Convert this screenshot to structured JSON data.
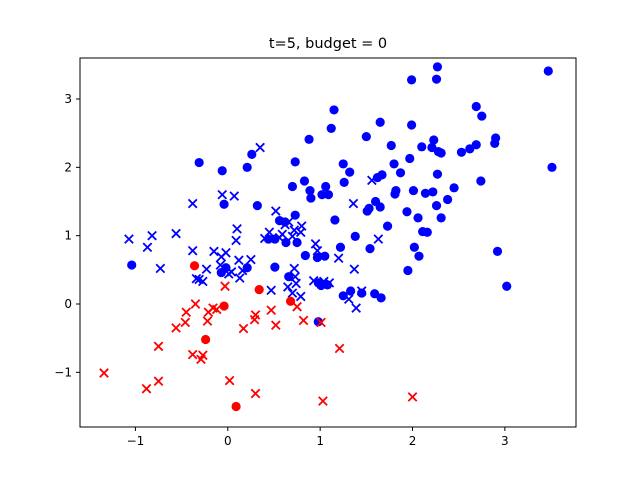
{
  "chart_data": {
    "type": "scatter",
    "title": "t=5, budget = 0",
    "xlabel": "",
    "ylabel": "",
    "xlim": [
      -1.6,
      3.77
    ],
    "ylim": [
      -1.8,
      3.6
    ],
    "xticks": [
      -1,
      0,
      1,
      2,
      3
    ],
    "yticks": [
      -1,
      0,
      1,
      2,
      3
    ],
    "xtick_labels": [
      "−1",
      "0",
      "1",
      "2",
      "3"
    ],
    "ytick_labels": [
      "−1",
      "0",
      "1",
      "2",
      "3"
    ],
    "grid": false,
    "legend": "none",
    "series": [
      {
        "color": "#0000ff",
        "marker": "circle",
        "points": [
          [
            3.47,
            3.41
          ],
          [
            2.27,
            3.47
          ],
          [
            1.99,
            3.28
          ],
          [
            2.26,
            3.29
          ],
          [
            1.15,
            2.84
          ],
          [
            2.69,
            2.89
          ],
          [
            2.75,
            2.75
          ],
          [
            1.12,
            2.57
          ],
          [
            1.65,
            2.66
          ],
          [
            1.99,
            2.62
          ],
          [
            0.88,
            2.41
          ],
          [
            1.5,
            2.45
          ],
          [
            2.23,
            2.4
          ],
          [
            2.9,
            2.43
          ],
          [
            2.89,
            2.35
          ],
          [
            2.69,
            2.33
          ],
          [
            2.62,
            2.27
          ],
          [
            2.1,
            2.3
          ],
          [
            2.21,
            2.29
          ],
          [
            2.53,
            2.22
          ],
          [
            2.28,
            2.23
          ],
          [
            2.31,
            2.21
          ],
          [
            1.77,
            2.32
          ],
          [
            0.26,
            2.19
          ],
          [
            -0.31,
            2.07
          ],
          [
            0.73,
            2.08
          ],
          [
            1.25,
            2.05
          ],
          [
            0.21,
            2.0
          ],
          [
            3.51,
            2.0
          ],
          [
            1.32,
            1.93
          ],
          [
            1.8,
            2.05
          ],
          [
            -0.06,
            1.95
          ],
          [
            1.97,
            2.13
          ],
          [
            1.87,
            1.92
          ],
          [
            2.27,
            1.9
          ],
          [
            1.67,
            1.89
          ],
          [
            1.62,
            1.85
          ],
          [
            0.83,
            1.8
          ],
          [
            2.74,
            1.8
          ],
          [
            1.06,
            1.72
          ],
          [
            0.7,
            1.72
          ],
          [
            1.26,
            1.78
          ],
          [
            2.45,
            1.7
          ],
          [
            0.89,
            1.66
          ],
          [
            2.01,
            1.66
          ],
          [
            1.82,
            1.66
          ],
          [
            2.22,
            1.64
          ],
          [
            2.14,
            1.62
          ],
          [
            1.81,
            1.61
          ],
          [
            2.38,
            1.53
          ],
          [
            1.02,
            1.6
          ],
          [
            1.09,
            1.6
          ],
          [
            0.9,
            1.55
          ],
          [
            -0.04,
            1.46
          ],
          [
            0.32,
            1.44
          ],
          [
            1.6,
            1.5
          ],
          [
            1.65,
            1.42
          ],
          [
            2.26,
            1.44
          ],
          [
            1.94,
            1.35
          ],
          [
            1.53,
            1.4
          ],
          [
            1.51,
            1.36
          ],
          [
            2.06,
            1.26
          ],
          [
            2.31,
            1.26
          ],
          [
            0.56,
            1.22
          ],
          [
            0.73,
            1.3
          ],
          [
            1.16,
            1.23
          ],
          [
            0.62,
            1.2
          ],
          [
            1.73,
            1.14
          ],
          [
            2.11,
            1.06
          ],
          [
            2.16,
            1.05
          ],
          [
            0.75,
            0.9
          ],
          [
            1.38,
            0.99
          ],
          [
            0.44,
            0.95
          ],
          [
            0.51,
            0.95
          ],
          [
            0.63,
            0.9
          ],
          [
            2.02,
            0.83
          ],
          [
            1.22,
            0.83
          ],
          [
            2.92,
            0.77
          ],
          [
            0.84,
            0.71
          ],
          [
            -1.04,
            0.57
          ],
          [
            1.54,
            0.81
          ],
          [
            2.07,
            0.7
          ],
          [
            0.97,
            0.68
          ],
          [
            1.05,
            0.7
          ],
          [
            0.51,
            0.54
          ],
          [
            0.21,
            0.53
          ],
          [
            -0.02,
            0.53
          ],
          [
            1.95,
            0.49
          ],
          [
            -0.07,
            0.46
          ],
          [
            0.66,
            0.4
          ],
          [
            3.02,
            0.26
          ],
          [
            1.33,
            0.19
          ],
          [
            1.45,
            0.16
          ],
          [
            1.66,
            0.09
          ],
          [
            1.59,
            0.15
          ],
          [
            1.25,
            0.12
          ],
          [
            0.98,
            0.31
          ],
          [
            1.08,
            0.28
          ],
          [
            0.98,
            -0.26
          ],
          [
            1.01,
            0.27
          ]
        ]
      },
      {
        "color": "#0000ff",
        "marker": "x",
        "points": [
          [
            0.35,
            2.29
          ],
          [
            1.56,
            1.81
          ],
          [
            -0.38,
            1.47
          ],
          [
            -0.06,
            1.6
          ],
          [
            0.07,
            1.58
          ],
          [
            1.36,
            1.47
          ],
          [
            0.52,
            1.36
          ],
          [
            -0.56,
            1.03
          ],
          [
            -0.82,
            1.0
          ],
          [
            -1.07,
            0.95
          ],
          [
            -0.87,
            0.83
          ],
          [
            0.1,
            1.1
          ],
          [
            0.62,
            1.16
          ],
          [
            0.45,
            1.05
          ],
          [
            0.79,
            1.05
          ],
          [
            0.72,
            1.08
          ],
          [
            0.66,
            1.2
          ],
          [
            0.8,
            1.14
          ],
          [
            0.56,
            0.97
          ],
          [
            1.63,
            0.95
          ],
          [
            0.09,
            0.93
          ],
          [
            0.4,
            0.96
          ],
          [
            0.7,
            0.99
          ],
          [
            0.59,
            1.02
          ],
          [
            -0.15,
            0.77
          ],
          [
            -0.38,
            0.78
          ],
          [
            -0.02,
            0.75
          ],
          [
            0.95,
            0.88
          ],
          [
            -0.07,
            0.69
          ],
          [
            -0.08,
            0.57
          ],
          [
            -0.73,
            0.52
          ],
          [
            0.25,
            0.65
          ],
          [
            0.12,
            0.64
          ],
          [
            0.97,
            0.78
          ],
          [
            1.37,
            0.51
          ],
          [
            1.2,
            0.67
          ],
          [
            0.72,
            0.52
          ],
          [
            -0.23,
            0.51
          ],
          [
            0.04,
            0.47
          ],
          [
            0.16,
            0.49
          ],
          [
            0.73,
            0.4
          ],
          [
            -0.34,
            0.37
          ],
          [
            -0.27,
            0.33
          ],
          [
            -0.31,
            0.36
          ],
          [
            0.01,
            0.44
          ],
          [
            0.13,
            0.38
          ],
          [
            0.47,
            0.2
          ],
          [
            0.7,
            0.16
          ],
          [
            0.65,
            0.25
          ],
          [
            0.74,
            0.3
          ],
          [
            0.79,
            0.11
          ],
          [
            1.04,
            0.33
          ],
          [
            1.1,
            0.31
          ],
          [
            0.93,
            0.34
          ],
          [
            1.31,
            0.07
          ],
          [
            1.39,
            -0.06
          ],
          [
            1.45,
            0.19
          ]
        ]
      },
      {
        "color": "#ff0000",
        "marker": "circle",
        "points": [
          [
            -0.36,
            0.56
          ],
          [
            0.34,
            0.21
          ],
          [
            0.68,
            0.04
          ],
          [
            -0.04,
            -0.03
          ],
          [
            -0.24,
            -0.52
          ],
          [
            0.09,
            -1.5
          ]
        ]
      },
      {
        "color": "#ff0000",
        "marker": "x",
        "points": [
          [
            -0.03,
            0.26
          ],
          [
            -0.35,
            0.0
          ],
          [
            -0.21,
            -0.12
          ],
          [
            -0.45,
            -0.12
          ],
          [
            -0.12,
            -0.08
          ],
          [
            -0.16,
            -0.06
          ],
          [
            0.3,
            -0.16
          ],
          [
            0.47,
            -0.09
          ],
          [
            0.75,
            -0.04
          ],
          [
            -0.22,
            -0.25
          ],
          [
            -0.46,
            -0.27
          ],
          [
            -0.56,
            -0.35
          ],
          [
            0.29,
            -0.23
          ],
          [
            0.52,
            -0.31
          ],
          [
            0.17,
            -0.36
          ],
          [
            0.82,
            -0.24
          ],
          [
            1.01,
            -0.27
          ],
          [
            -0.75,
            -0.62
          ],
          [
            -0.38,
            -0.74
          ],
          [
            -0.29,
            -0.81
          ],
          [
            -0.27,
            -0.75
          ],
          [
            1.21,
            -0.65
          ],
          [
            -1.34,
            -1.01
          ],
          [
            -0.75,
            -1.13
          ],
          [
            -0.88,
            -1.24
          ],
          [
            0.02,
            -1.12
          ],
          [
            0.3,
            -1.31
          ],
          [
            1.03,
            -1.42
          ],
          [
            2.0,
            -1.36
          ]
        ]
      }
    ]
  }
}
